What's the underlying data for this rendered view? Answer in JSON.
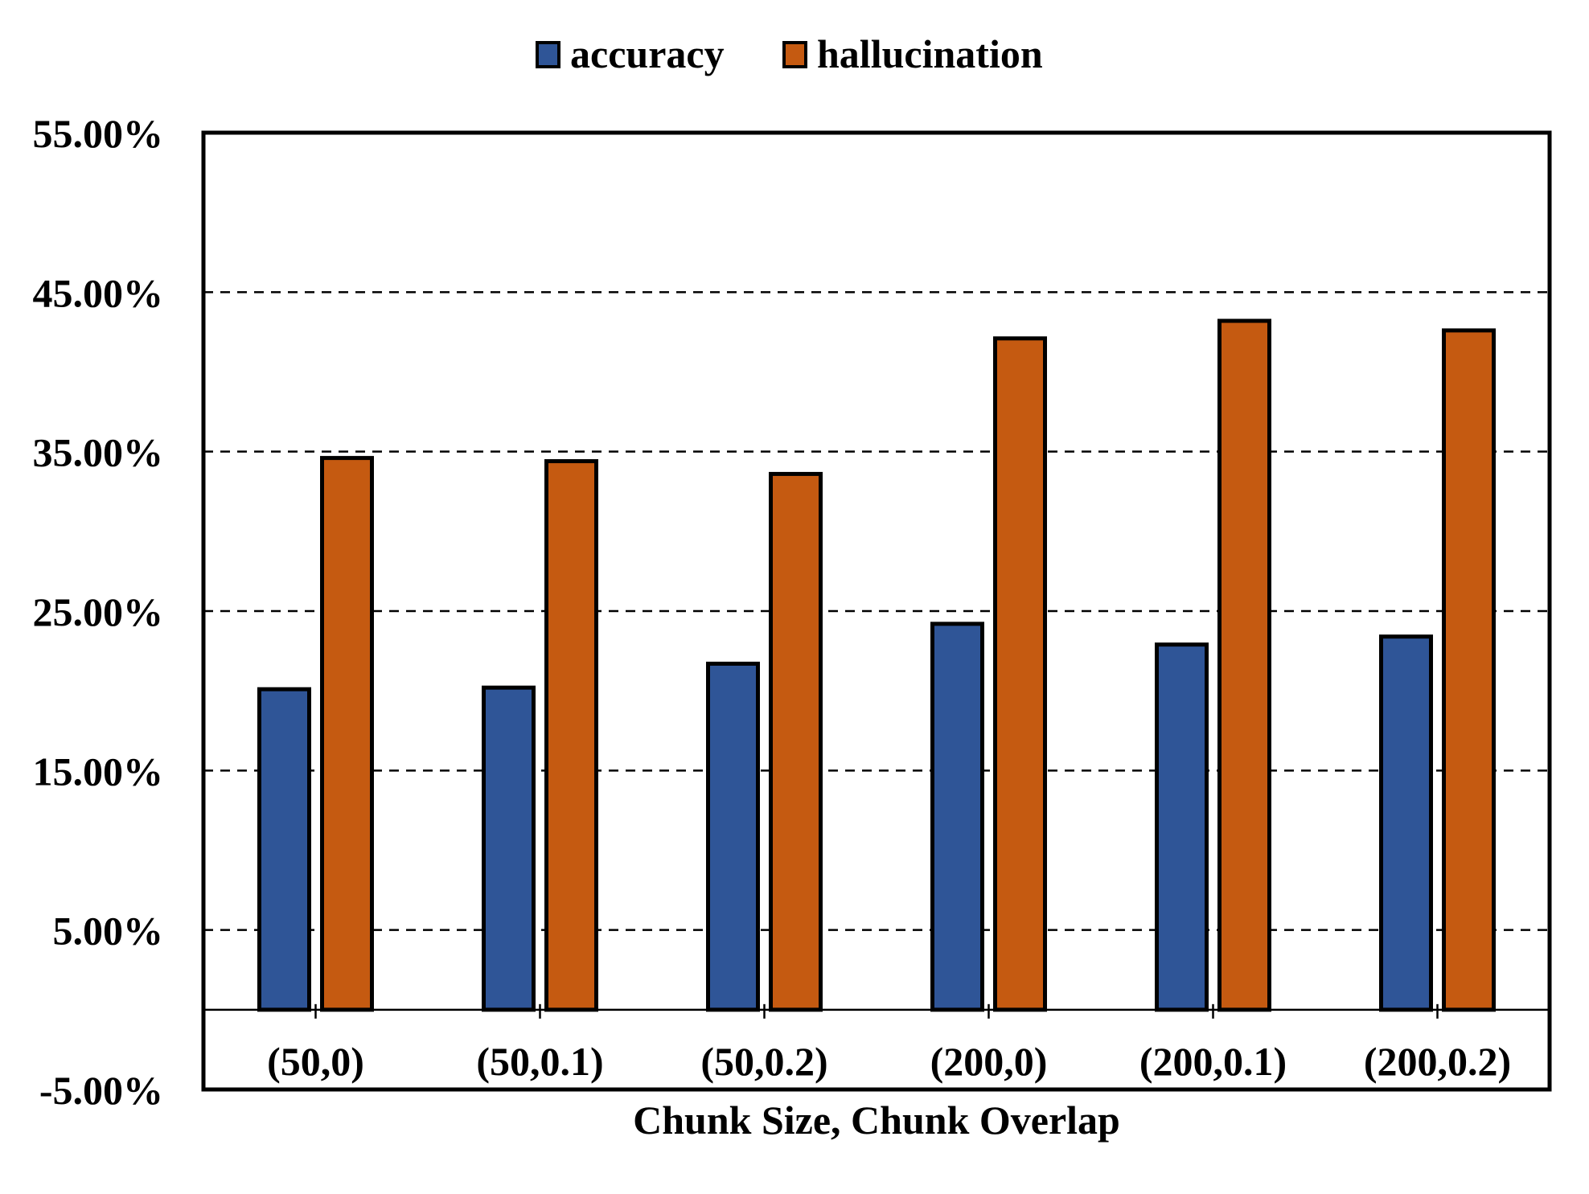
{
  "chart_data": {
    "type": "bar",
    "title": "",
    "xlabel": "Chunk Size, Chunk Overlap",
    "ylabel": "",
    "categories": [
      "(50,0)",
      "(50,0.1)",
      "(50,0.2)",
      "(200,0)",
      "(200,0.1)",
      "(200,0.2)"
    ],
    "series": [
      {
        "name": "accuracy",
        "color": "#2F5597",
        "values": [
          20.1,
          20.2,
          21.7,
          24.2,
          22.9,
          23.4
        ]
      },
      {
        "name": "hallucination",
        "color": "#C55A11",
        "values": [
          34.6,
          34.4,
          33.6,
          42.1,
          43.2,
          42.6
        ]
      }
    ],
    "ylim": [
      -5,
      55
    ],
    "yticks": [
      {
        "value": 55,
        "label": "55.00%"
      },
      {
        "value": 45,
        "label": "45.00%"
      },
      {
        "value": 35,
        "label": "35.00%"
      },
      {
        "value": 25,
        "label": "25.00%"
      },
      {
        "value": 15,
        "label": "15.00%"
      },
      {
        "value": 5,
        "label": "5.00%"
      },
      {
        "value": -5,
        "label": "-5.00%"
      }
    ],
    "gridlines": "dashed horizontal",
    "legend_position": "top-center"
  }
}
